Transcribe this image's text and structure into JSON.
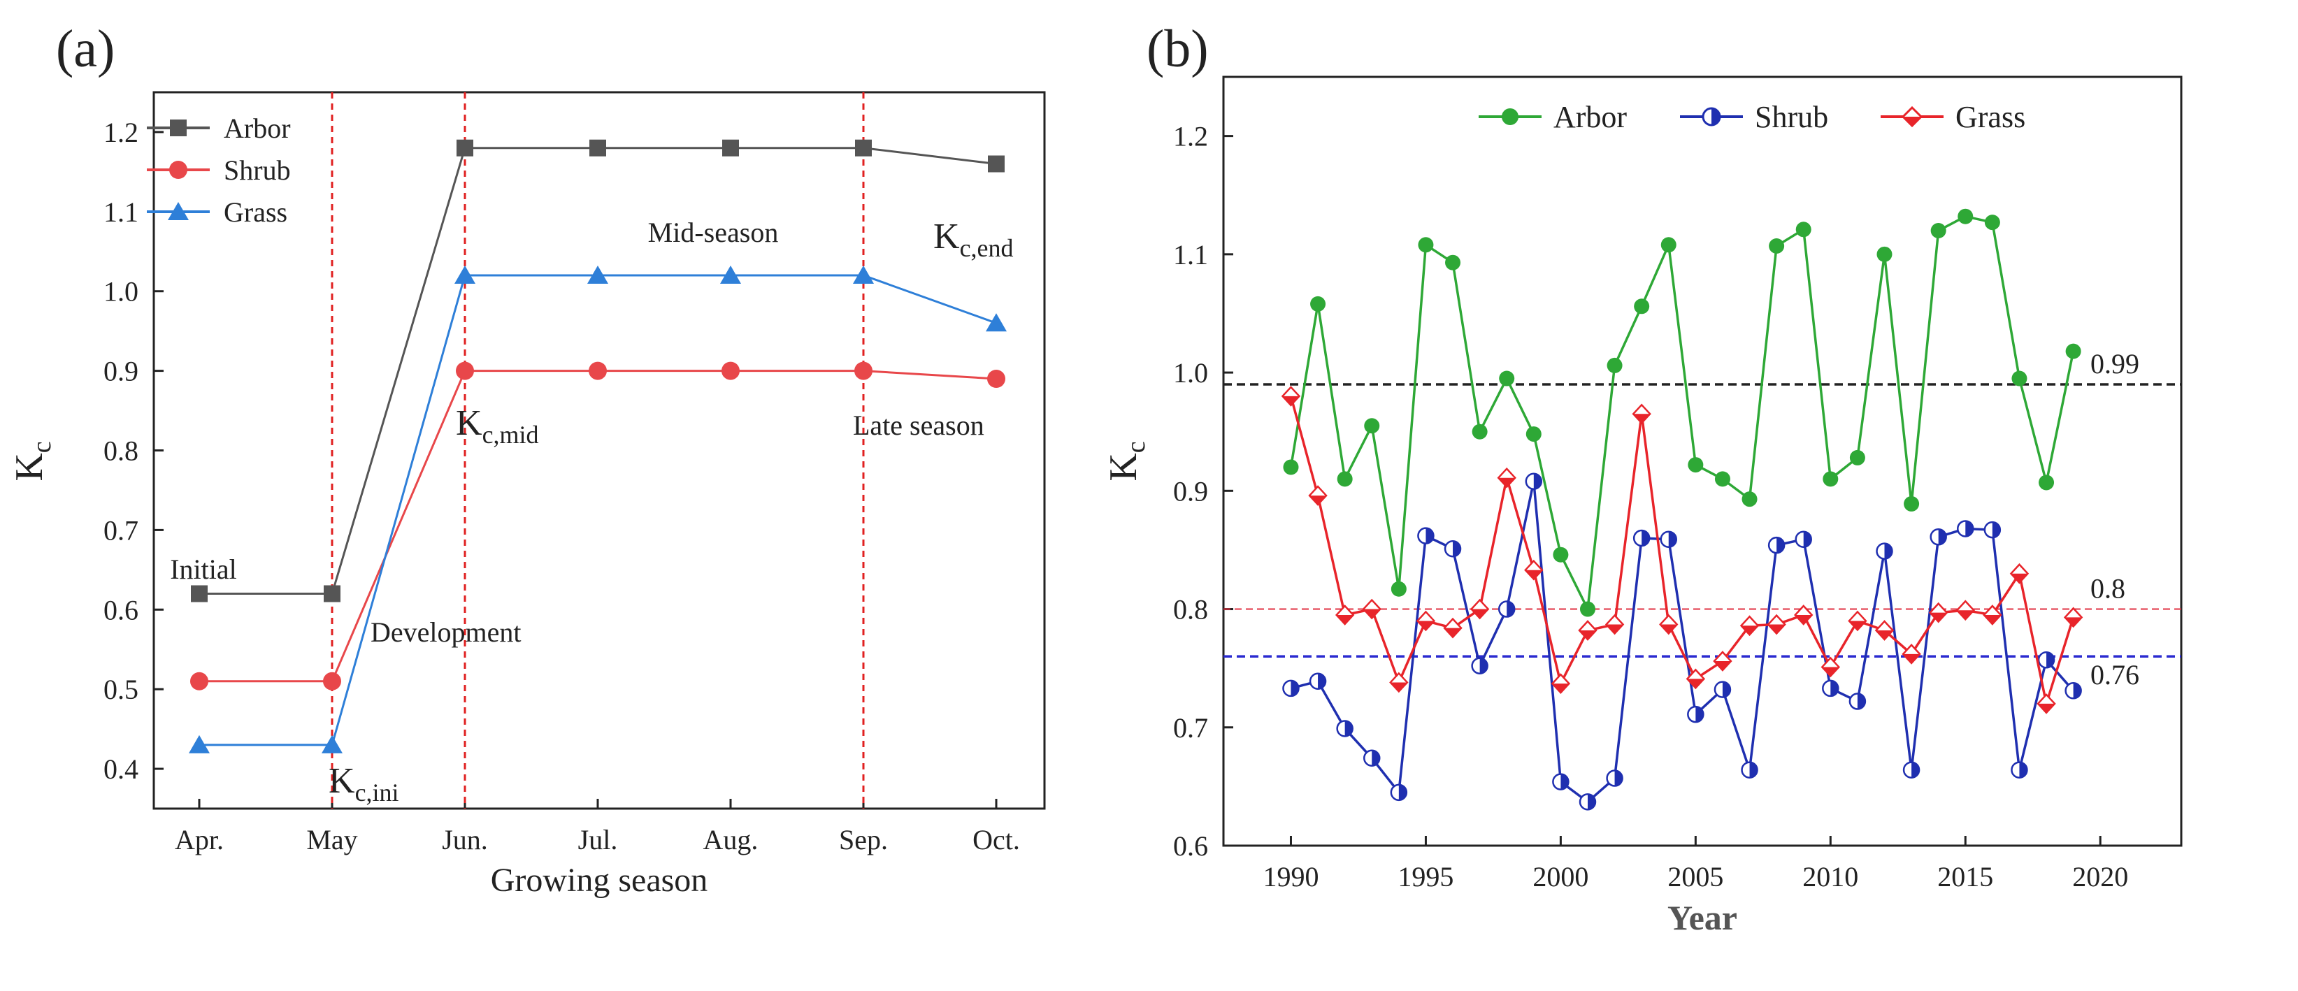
{
  "colors": {
    "arbor_a": "#555555",
    "shrub_a": "#e8474a",
    "grass_a": "#2e7fd8",
    "arbor_b": "#2ea836",
    "shrub_b": "#1f2fb0",
    "grass_b": "#e8242a",
    "stage_line": "#e02020",
    "mean_arbor": "#222222",
    "mean_shrub": "#2a2ad0",
    "mean_grass": "#e03040"
  },
  "chart_data": [
    {
      "panel_label": "(a)",
      "type": "line",
      "xlabel": "Growing season",
      "ylabel": "K",
      "ylabel_sub": "c",
      "categories": [
        "Apr.",
        "May",
        "Jun.",
        "Jul.",
        "Aug.",
        "Sep.",
        "Oct."
      ],
      "ylim": [
        0.35,
        1.25
      ],
      "yticks": [
        0.4,
        0.5,
        0.6,
        0.7,
        0.8,
        0.9,
        1.0,
        1.1,
        1.2
      ],
      "series": [
        {
          "name": "Arbor",
          "marker": "square",
          "values": [
            0.62,
            0.62,
            1.18,
            1.18,
            1.18,
            1.18,
            1.16
          ]
        },
        {
          "name": "Shrub",
          "marker": "circle",
          "values": [
            0.51,
            0.51,
            0.9,
            0.9,
            0.9,
            0.9,
            0.89
          ]
        },
        {
          "name": "Grass",
          "marker": "triangle",
          "values": [
            0.43,
            0.43,
            1.02,
            1.02,
            1.02,
            1.02,
            0.96
          ]
        }
      ],
      "stage_lines_at": [
        "May",
        "Jun.",
        "Sep."
      ],
      "annotations": {
        "initial": "Initial",
        "development": "Development",
        "mid_season": "Mid-season",
        "late_season": "Late season",
        "kc_ini": {
          "main": "K",
          "sub": "c,ini"
        },
        "kc_mid": {
          "main": "K",
          "sub": "c,mid"
        },
        "kc_end": {
          "main": "K",
          "sub": "c,end"
        }
      },
      "legend_position": "top-left"
    },
    {
      "panel_label": "(b)",
      "type": "line",
      "xlabel": "Year",
      "ylabel": "K",
      "ylabel_sub": "c",
      "xlim": [
        1987.5,
        2023
      ],
      "xticks": [
        1990,
        1995,
        2000,
        2005,
        2010,
        2015,
        2020
      ],
      "ylim": [
        0.6,
        1.25
      ],
      "yticks": [
        0.6,
        0.7,
        0.8,
        0.9,
        1.0,
        1.1,
        1.2
      ],
      "x": [
        1990,
        1991,
        1992,
        1993,
        1994,
        1995,
        1996,
        1997,
        1998,
        1999,
        2000,
        2001,
        2002,
        2003,
        2004,
        2005,
        2006,
        2007,
        2008,
        2009,
        2010,
        2011,
        2012,
        2013,
        2014,
        2015,
        2016,
        2017,
        2018,
        2019
      ],
      "series": [
        {
          "name": "Arbor",
          "marker": "circle",
          "values": [
            0.92,
            1.058,
            0.91,
            0.955,
            0.817,
            1.108,
            1.093,
            0.95,
            0.995,
            0.948,
            0.846,
            0.8,
            1.006,
            1.056,
            1.108,
            0.922,
            0.91,
            0.893,
            1.107,
            1.121,
            0.91,
            0.928,
            1.1,
            0.889,
            1.12,
            1.132,
            1.127,
            0.995,
            0.907,
            1.018
          ]
        },
        {
          "name": "Shrub",
          "marker": "half-circle",
          "values": [
            0.733,
            0.739,
            0.699,
            0.674,
            0.645,
            0.862,
            0.851,
            0.752,
            0.8,
            0.908,
            0.654,
            0.637,
            0.657,
            0.86,
            0.859,
            0.711,
            0.732,
            0.664,
            0.854,
            0.859,
            0.733,
            0.722,
            0.849,
            0.664,
            0.861,
            0.868,
            0.867,
            0.664,
            0.757,
            0.731
          ]
        },
        {
          "name": "Grass",
          "marker": "diamond",
          "values": [
            0.98,
            0.896,
            0.795,
            0.8,
            0.738,
            0.79,
            0.784,
            0.8,
            0.911,
            0.833,
            0.737,
            0.782,
            0.787,
            0.965,
            0.787,
            0.741,
            0.756,
            0.786,
            0.787,
            0.795,
            0.751,
            0.79,
            0.782,
            0.762,
            0.797,
            0.799,
            0.795,
            0.83,
            0.72,
            0.793
          ]
        }
      ],
      "mean_lines": [
        {
          "series": "Arbor",
          "value": 0.99,
          "label": "0.99"
        },
        {
          "series": "Grass",
          "value": 0.8,
          "label": "0.8"
        },
        {
          "series": "Shrub",
          "value": 0.76,
          "label": "0.76"
        }
      ],
      "legend_position": "top"
    }
  ]
}
